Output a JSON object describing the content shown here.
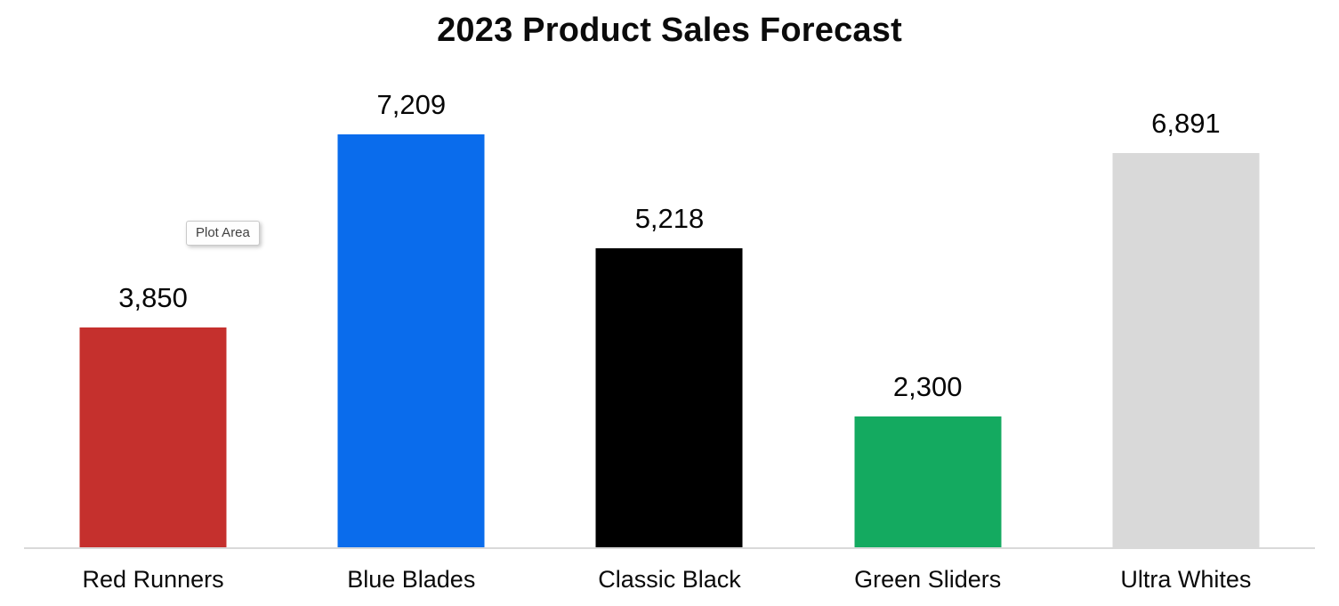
{
  "chart_data": {
    "type": "bar",
    "title": "2023 Product Sales Forecast",
    "categories": [
      "Red Runners",
      "Blue Blades",
      "Classic Black",
      "Green Sliders",
      "Ultra Whites"
    ],
    "values": [
      3850,
      7209,
      5218,
      2300,
      6891
    ],
    "value_labels": [
      "3,850",
      "7,209",
      "5,218",
      "2,300",
      "6,891"
    ],
    "colors": [
      "#c5302d",
      "#0a6cec",
      "#000000",
      "#14aa60",
      "#d9d9d9"
    ],
    "xlabel": "",
    "ylabel": "",
    "ylim": [
      0,
      7209
    ],
    "grid": false,
    "legend": false,
    "axis_line_color": "#d9d9d9",
    "text_color": "#0a0a0a"
  },
  "tooltip": {
    "text": "Plot Area"
  }
}
